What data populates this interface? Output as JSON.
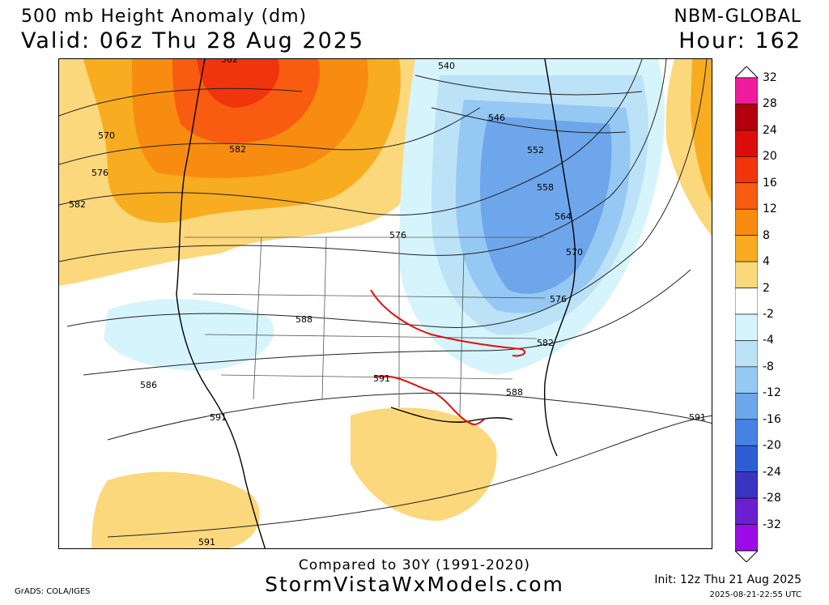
{
  "header": {
    "title": "500 mb Height Anomaly (dm)",
    "valid": "Valid: 06z Thu 28 Aug 2025",
    "model": "NBM-GLOBAL",
    "hour": "Hour: 162"
  },
  "colorbar": {
    "labels": [
      "32",
      "28",
      "24",
      "20",
      "16",
      "12",
      "8",
      "4",
      "2",
      "-2",
      "-4",
      "-8",
      "-12",
      "-16",
      "-20",
      "-24",
      "-28",
      "-32"
    ],
    "colors": [
      "#f01c9c",
      "#b4000c",
      "#dc0c0c",
      "#f0340c",
      "#f85c10",
      "#f88c10",
      "#f8ac20",
      "#fcd87c",
      "#ffffff",
      "#d6f4fc",
      "#bce2f8",
      "#96c8f4",
      "#6ea6ec",
      "#4682e4",
      "#2e5ed6",
      "#3b34c0",
      "#6a20d0",
      "#9c0ce8"
    ]
  },
  "contours": {
    "labels": [
      "570",
      "576",
      "582",
      "540",
      "546",
      "552",
      "558",
      "564",
      "570",
      "576",
      "582",
      "576",
      "588",
      "586",
      "591",
      "591",
      "588",
      "582",
      "591",
      "591",
      "582"
    ]
  },
  "footer": {
    "compared": "Compared to 30Y (1991-2020)",
    "site": "StormVistaWxModels.com",
    "grads": "GrADS: COLA/IGES",
    "init": "Init: 12z Thu 21 Aug 2025",
    "stamp": "2025-08-21-22:55 UTC"
  }
}
